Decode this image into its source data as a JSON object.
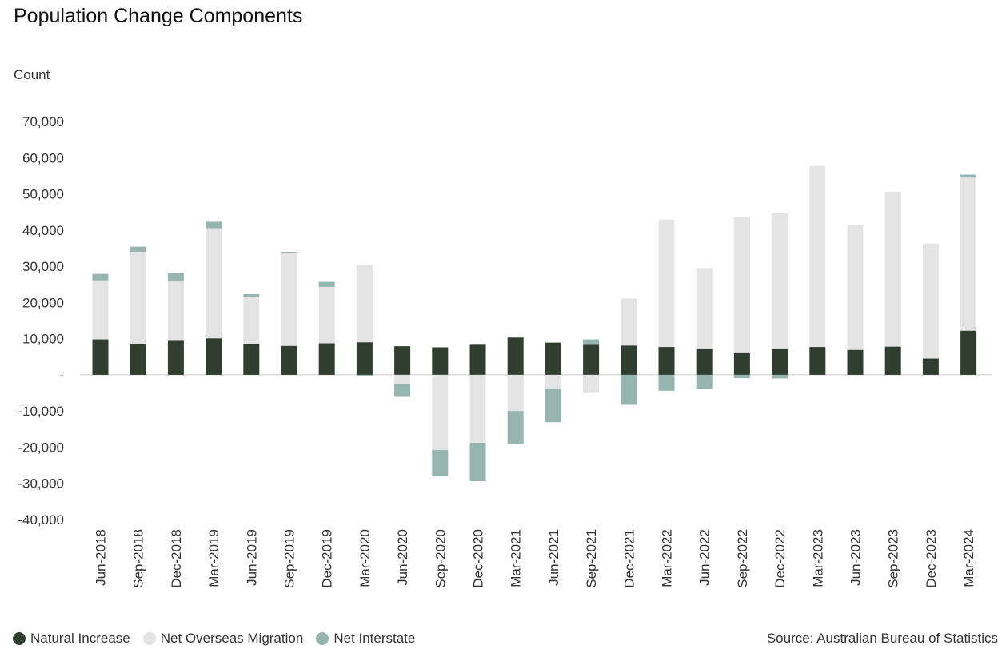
{
  "title": "Population Change Components",
  "source": "Source: Australian Bureau of Statistics",
  "colors": {
    "natural": "#2f3e2e",
    "overseas": "#e4e4e4",
    "interstate": "#96b5b0"
  },
  "chart_data": {
    "type": "bar",
    "stacked": true,
    "title": "Population Change Components",
    "ylabel": "Count",
    "xlabel": "",
    "ylim": [
      -40000,
      70000
    ],
    "yticks": [
      70000,
      60000,
      50000,
      40000,
      30000,
      20000,
      10000,
      0,
      -10000,
      -20000,
      -30000,
      -40000
    ],
    "ytick_labels": [
      "70,000",
      "60,000",
      "50,000",
      "40,000",
      "30,000",
      "20,000",
      "10,000",
      "-",
      "-10,000",
      "-20,000",
      "-30,000",
      "-40,000"
    ],
    "grid": false,
    "legend_position": "bottom-left",
    "categories": [
      "Jun-2018",
      "Sep-2018",
      "Dec-2018",
      "Mar-2019",
      "Jun-2019",
      "Sep-2019",
      "Dec-2019",
      "Mar-2020",
      "Jun-2020",
      "Sep-2020",
      "Dec-2020",
      "Mar-2021",
      "Jun-2021",
      "Sep-2021",
      "Dec-2021",
      "Mar-2022",
      "Jun-2022",
      "Sep-2022",
      "Dec-2022",
      "Mar-2023",
      "Jun-2023",
      "Sep-2023",
      "Dec-2023",
      "Mar-2024"
    ],
    "series": [
      {
        "name": "Natural Increase",
        "color": "#2f3e2e",
        "values": [
          9800,
          8600,
          9400,
          10100,
          8600,
          8000,
          8700,
          9000,
          7900,
          7600,
          8300,
          10300,
          8900,
          8300,
          8100,
          7700,
          7100,
          6000,
          7100,
          7700,
          6900,
          7800,
          4500,
          12200
        ]
      },
      {
        "name": "Net Overseas Migration",
        "color": "#e4e4e4",
        "values": [
          16300,
          25400,
          16400,
          30400,
          12900,
          25800,
          15600,
          21300,
          -2500,
          -20800,
          -18800,
          -10000,
          -4000,
          -5000,
          13000,
          35200,
          22400,
          37500,
          37600,
          50000,
          34500,
          42800,
          31800,
          42300
        ]
      },
      {
        "name": "Net Interstate",
        "color": "#96b5b0",
        "values": [
          1800,
          1400,
          2300,
          1800,
          800,
          200,
          1400,
          -300,
          -3600,
          -7300,
          -10600,
          -9200,
          -9100,
          1500,
          -8300,
          -4400,
          -4000,
          -900,
          -1000,
          0,
          0,
          0,
          0,
          800
        ]
      }
    ]
  }
}
